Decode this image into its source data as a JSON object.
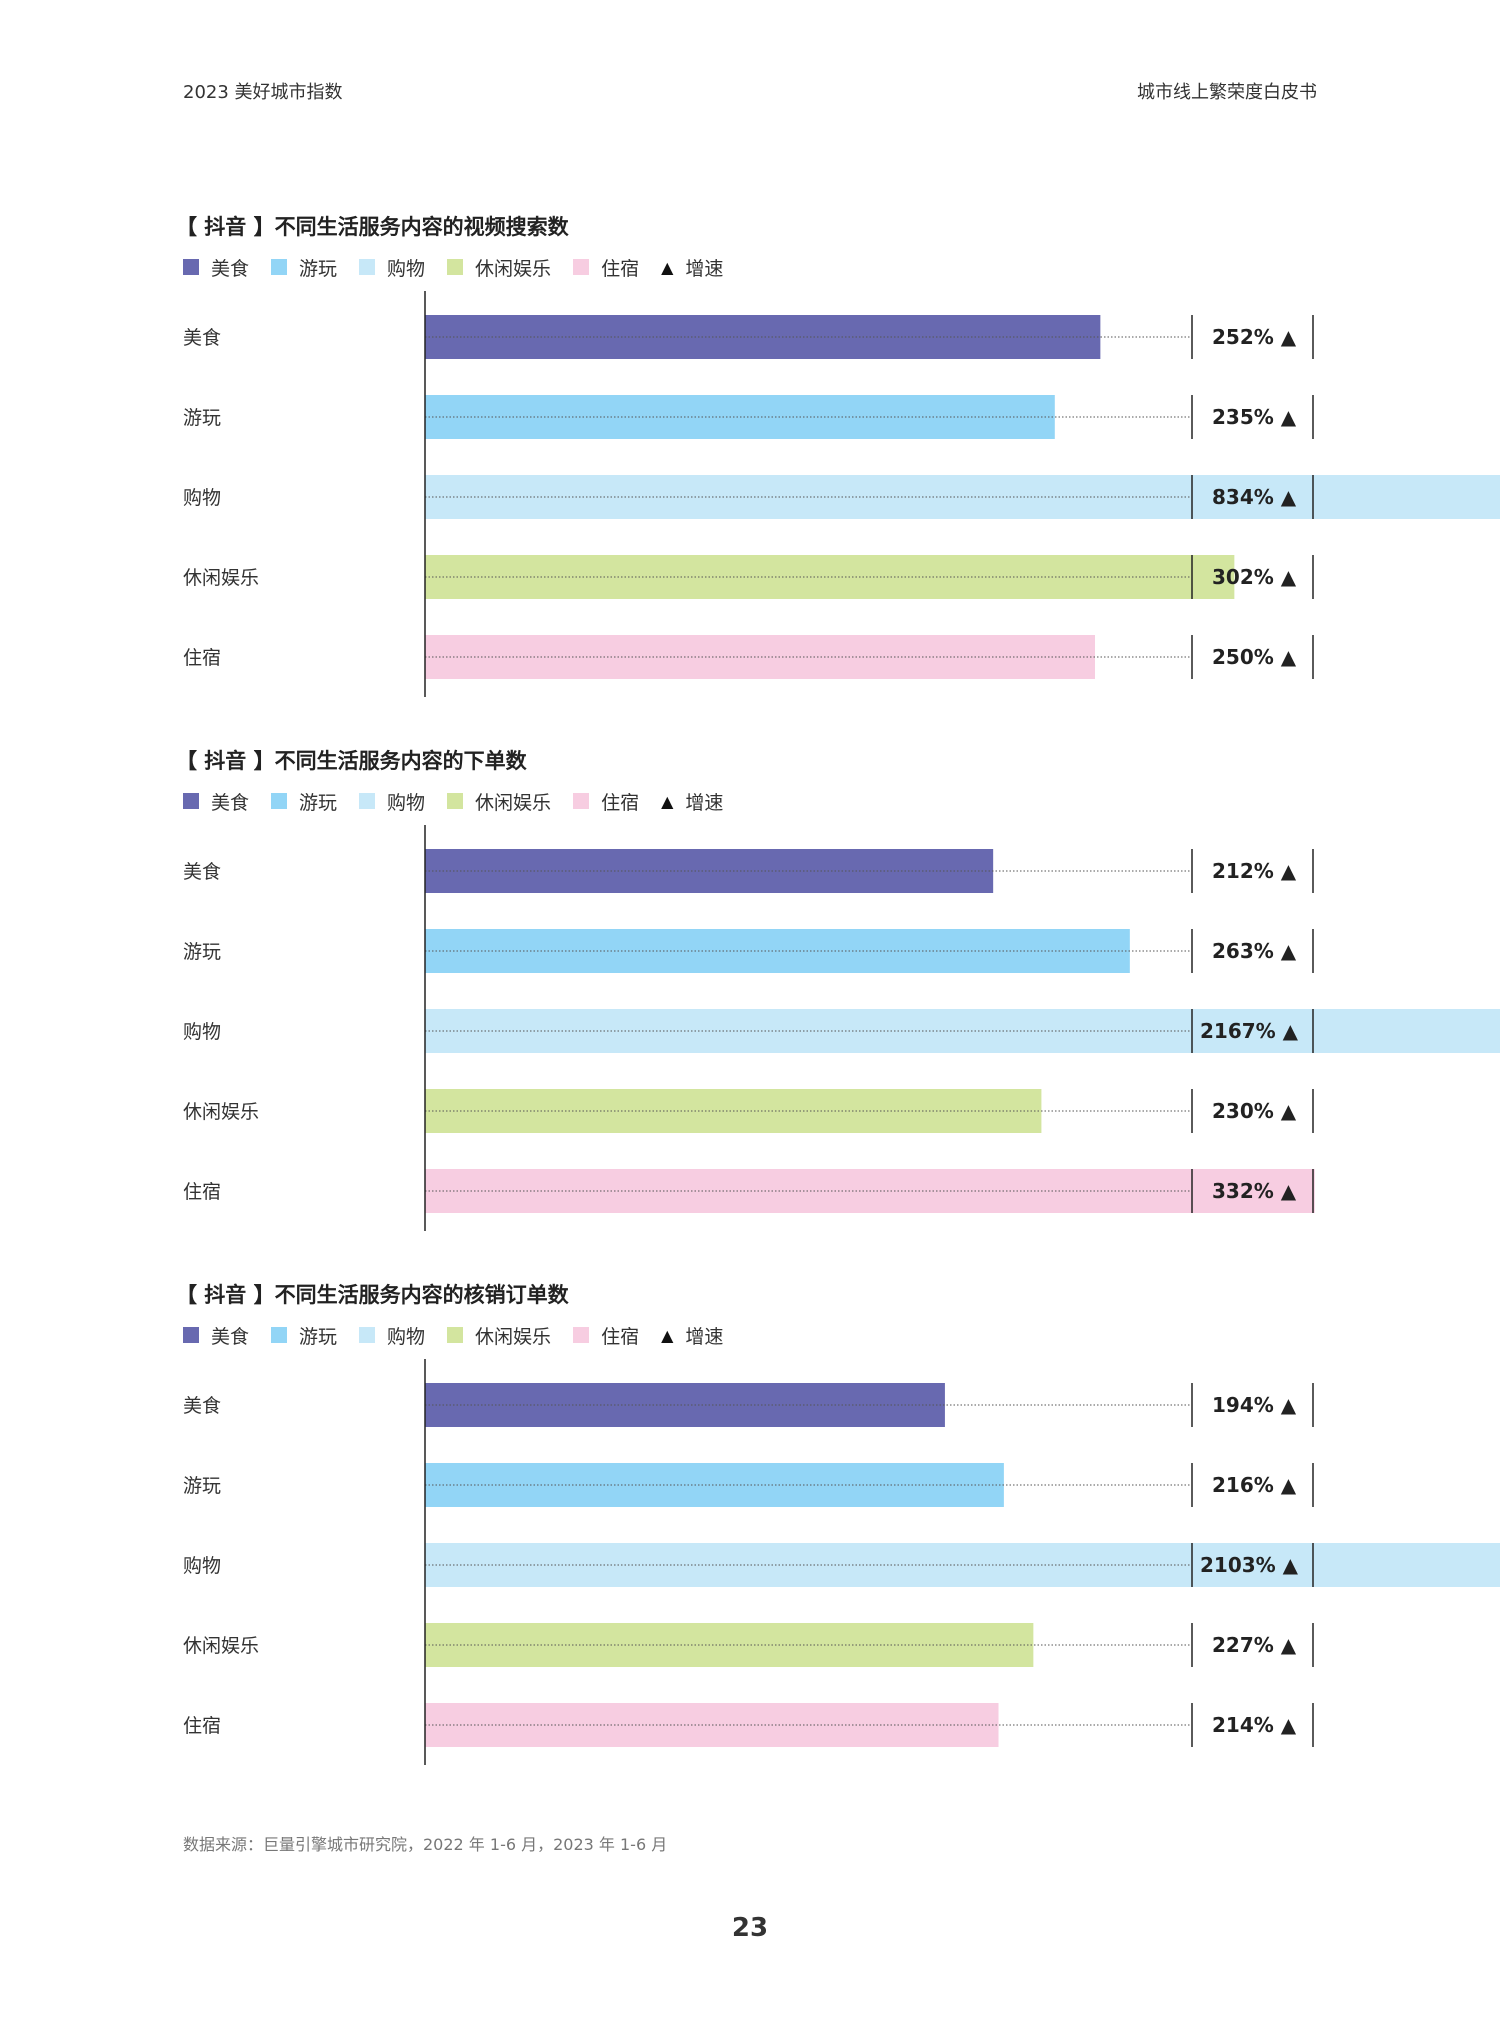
{
  "header": {
    "left": "2023 美好城市指数",
    "right": "城市线上繁荣度白皮书"
  },
  "colors": {
    "美食": "#6869b0",
    "游玩": "#92d5f6",
    "购物": "#c7e8f8",
    "休闲娱乐": "#d3e59f",
    "住宿": "#f7cde1"
  },
  "chart_data": [
    {
      "type": "bar",
      "title": "【 抖音 】不同生活服务内容的视频搜索数",
      "legend": [
        "美食",
        "游玩",
        "购物",
        "休闲娱乐",
        "住宿",
        "增速"
      ],
      "categories": [
        "美食",
        "游玩",
        "购物",
        "休闲娱乐",
        "住宿"
      ],
      "values": [
        252,
        235,
        834,
        302,
        250
      ],
      "labels": [
        "252% ▲",
        "235% ▲",
        "834% ▲",
        "302% ▲",
        "250% ▲"
      ]
    },
    {
      "type": "bar",
      "title": "【 抖音 】不同生活服务内容的下单数",
      "legend": [
        "美食",
        "游玩",
        "购物",
        "休闲娱乐",
        "住宿",
        "增速"
      ],
      "categories": [
        "美食",
        "游玩",
        "购物",
        "休闲娱乐",
        "住宿"
      ],
      "values": [
        212,
        263,
        2167,
        230,
        332
      ],
      "labels": [
        "212% ▲",
        "263% ▲",
        "2167% ▲",
        "230% ▲",
        "332% ▲"
      ]
    },
    {
      "type": "bar",
      "title": "【 抖音 】不同生活服务内容的核销订单数",
      "legend": [
        "美食",
        "游玩",
        "购物",
        "休闲娱乐",
        "住宿",
        "增速"
      ],
      "categories": [
        "美食",
        "游玩",
        "购物",
        "休闲娱乐",
        "住宿"
      ],
      "values": [
        194,
        216,
        2103,
        227,
        214
      ],
      "labels": [
        "194% ▲",
        "216% ▲",
        "2103% ▲",
        "227% ▲",
        "214% ▲"
      ]
    }
  ],
  "source": "数据来源：巨量引擎城市研究院，2022 年 1-6 月，2023 年 1-6 月",
  "page_number": "23"
}
